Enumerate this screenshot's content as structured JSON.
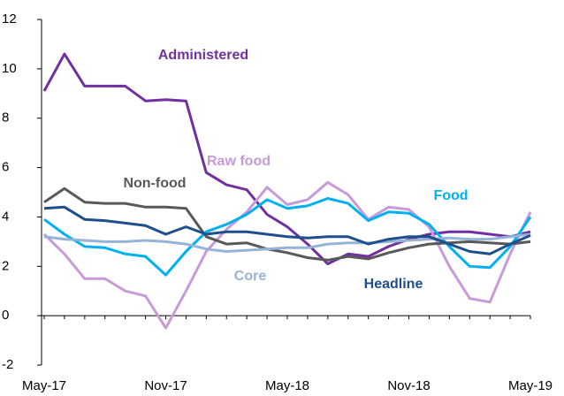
{
  "chart_data": {
    "type": "line",
    "x": [
      "May-17",
      null,
      null,
      null,
      null,
      null,
      "Nov-17",
      null,
      null,
      null,
      null,
      null,
      "May-18",
      null,
      null,
      null,
      null,
      null,
      "Nov-18",
      null,
      null,
      null,
      null,
      null,
      "May-19"
    ],
    "ylim": [
      -2,
      12
    ],
    "yticks": [
      -2,
      0,
      2,
      4,
      6,
      8,
      10,
      12
    ],
    "series": [
      {
        "name": "Administered",
        "color": "#7030a0",
        "values": [
          9.1,
          10.6,
          9.3,
          9.3,
          9.3,
          8.7,
          8.75,
          8.7,
          5.8,
          5.3,
          5.1,
          4.1,
          3.6,
          2.9,
          2.1,
          2.5,
          2.4,
          2.8,
          3.1,
          3.3,
          3.4,
          3.4,
          3.3,
          3.2,
          3.4
        ]
      },
      {
        "name": "Raw food",
        "color": "#c89ad8",
        "values": [
          3.3,
          2.5,
          1.5,
          1.5,
          1.0,
          0.8,
          -0.5,
          1.0,
          2.6,
          3.5,
          4.2,
          5.2,
          4.5,
          4.7,
          5.4,
          4.9,
          3.9,
          4.4,
          4.3,
          3.6,
          2.0,
          0.7,
          0.55,
          2.5,
          4.2
        ]
      },
      {
        "name": "Non-food",
        "color": "#595959",
        "values": [
          4.6,
          5.15,
          4.6,
          4.55,
          4.55,
          4.4,
          4.4,
          4.35,
          3.2,
          2.9,
          2.95,
          2.7,
          2.55,
          2.35,
          2.25,
          2.4,
          2.3,
          2.55,
          2.75,
          2.9,
          2.95,
          3.0,
          2.95,
          2.9,
          3.0
        ]
      },
      {
        "name": "Food",
        "color": "#00b0f0",
        "values": [
          3.9,
          3.3,
          2.8,
          2.75,
          2.5,
          2.4,
          1.65,
          2.6,
          3.4,
          3.7,
          4.1,
          4.7,
          4.35,
          4.45,
          4.75,
          4.55,
          3.85,
          4.2,
          4.15,
          3.7,
          2.8,
          2.0,
          1.95,
          2.8,
          4.0
        ]
      },
      {
        "name": "Core",
        "color": "#95b3d7",
        "values": [
          3.2,
          3.1,
          3.05,
          3.0,
          3.0,
          3.05,
          3.0,
          2.9,
          2.7,
          2.6,
          2.65,
          2.7,
          2.75,
          2.75,
          2.9,
          2.95,
          2.95,
          3.0,
          3.05,
          3.1,
          3.15,
          3.1,
          3.1,
          3.2,
          3.3
        ]
      },
      {
        "name": "Headline",
        "color": "#1f4e8c",
        "values": [
          4.35,
          4.4,
          3.9,
          3.85,
          3.75,
          3.65,
          3.3,
          3.6,
          3.3,
          3.4,
          3.4,
          3.3,
          3.2,
          3.15,
          3.2,
          3.2,
          2.9,
          3.1,
          3.2,
          3.2,
          2.9,
          2.6,
          2.5,
          2.9,
          3.25
        ]
      }
    ]
  }
}
